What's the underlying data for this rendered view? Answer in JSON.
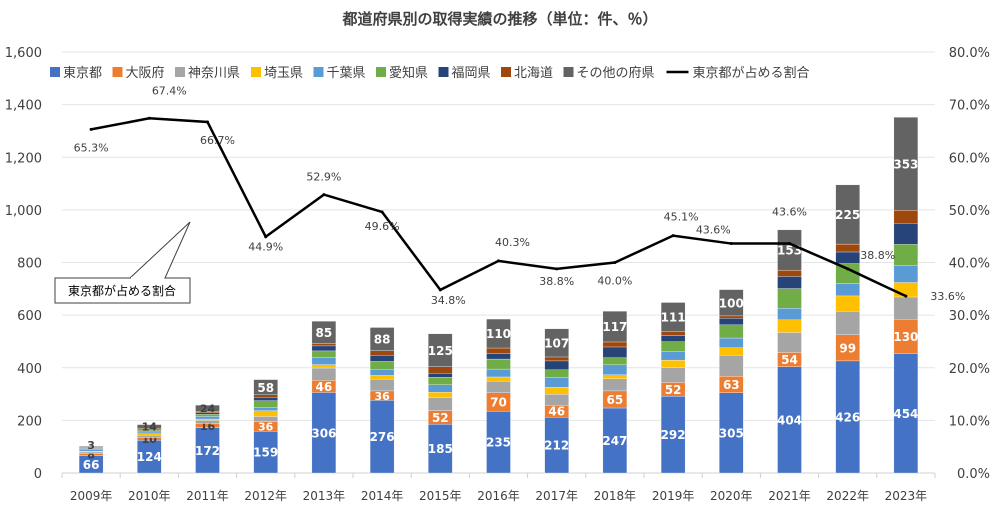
{
  "chart_data": {
    "type": "bar",
    "stacked": true,
    "title": "都道府県別の取得実績の推移（単位：件、％）",
    "categories": [
      "2009年",
      "2010年",
      "2011年",
      "2012年",
      "2013年",
      "2014年",
      "2015年",
      "2016年",
      "2017年",
      "2018年",
      "2019年",
      "2020年",
      "2021年",
      "2022年",
      "2023年"
    ],
    "ylim": [
      0,
      1600
    ],
    "yticks": [
      "0",
      "200",
      "400",
      "600",
      "800",
      "1,000",
      "1,200",
      "1,400",
      "1,600"
    ],
    "y2lim": [
      0,
      80
    ],
    "y2ticks": [
      "0.0%",
      "10.0%",
      "20.0%",
      "30.0%",
      "40.0%",
      "50.0%",
      "60.0%",
      "70.0%",
      "80.0%"
    ],
    "grid": true,
    "legend_position": "top",
    "series": [
      {
        "name": "東京都",
        "color": "#4472C4",
        "labeled": true,
        "values": [
          66,
          124,
          172,
          159,
          306,
          276,
          185,
          235,
          212,
          247,
          292,
          305,
          404,
          426,
          454
        ]
      },
      {
        "name": "大阪府",
        "color": "#ED7D31",
        "labeled": true,
        "values": [
          8,
          10,
          16,
          36,
          46,
          36,
          52,
          70,
          46,
          65,
          52,
          63,
          54,
          99,
          130
        ]
      },
      {
        "name": "神奈川県",
        "color": "#A5A5A5",
        "labeled": false,
        "values": [
          6,
          10,
          12,
          20,
          47,
          44,
          50,
          44,
          41,
          46,
          56,
          79,
          76,
          90,
          85
        ]
      },
      {
        "name": "埼玉県",
        "color": "#FFC000",
        "labeled": false,
        "values": [
          3,
          5,
          5,
          22,
          13,
          15,
          20,
          16,
          27,
          15,
          29,
          29,
          48,
          58,
          55
        ]
      },
      {
        "name": "千葉県",
        "color": "#5B9BD5",
        "labeled": false,
        "values": [
          5,
          7,
          10,
          13,
          27,
          23,
          28,
          30,
          37,
          38,
          32,
          37,
          44,
          47,
          65
        ]
      },
      {
        "name": "愛知県",
        "color": "#70AD47",
        "labeled": false,
        "values": [
          4,
          6,
          8,
          25,
          25,
          30,
          29,
          38,
          29,
          27,
          38,
          50,
          75,
          76,
          80
        ]
      },
      {
        "name": "福岡県",
        "color": "#264478",
        "labeled": false,
        "values": [
          3,
          4,
          6,
          13,
          19,
          23,
          15,
          20,
          34,
          41,
          23,
          25,
          46,
          44,
          80
        ]
      },
      {
        "name": "北海道",
        "color": "#9E480E",
        "labeled": false,
        "values": [
          3,
          4,
          5,
          9,
          9,
          18,
          25,
          22,
          15,
          19,
          15,
          9,
          24,
          30,
          50
        ]
      },
      {
        "name": "その他の府県",
        "color": "#636363",
        "labeled": true,
        "values": [
          3,
          14,
          24,
          58,
          85,
          88,
          125,
          110,
          107,
          117,
          111,
          100,
          153,
          225,
          353
        ]
      }
    ],
    "line": {
      "name": "東京都が占める割合",
      "color": "#000000",
      "values": [
        65.3,
        67.4,
        66.7,
        44.9,
        52.9,
        49.6,
        34.8,
        40.3,
        38.8,
        40.0,
        45.1,
        43.6,
        43.6,
        38.8,
        33.6
      ],
      "labels": [
        "65.3%",
        "67.4%",
        "66.7%",
        "44.9%",
        "52.9%",
        "49.6%",
        "34.8%",
        "40.3%",
        "38.8%",
        "40.0%",
        "45.1%",
        "43.6%",
        "43.6%",
        "38.8%",
        "33.6%"
      ]
    },
    "annotation": "東京都が占める割合"
  }
}
